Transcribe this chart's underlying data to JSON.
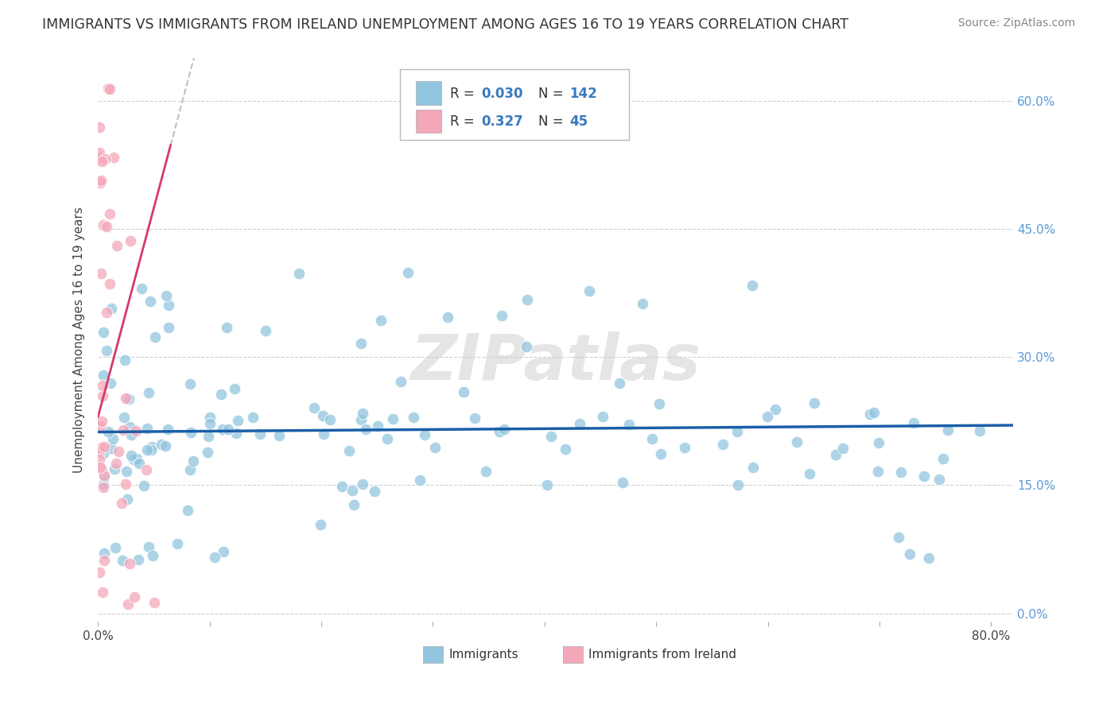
{
  "title": "IMMIGRANTS VS IMMIGRANTS FROM IRELAND UNEMPLOYMENT AMONG AGES 16 TO 19 YEARS CORRELATION CHART",
  "source": "Source: ZipAtlas.com",
  "ylabel": "Unemployment Among Ages 16 to 19 years",
  "xlim": [
    0.0,
    0.82
  ],
  "ylim": [
    -0.01,
    0.65
  ],
  "xtick_vals": [
    0.0,
    0.1,
    0.2,
    0.3,
    0.4,
    0.5,
    0.6,
    0.7,
    0.8
  ],
  "xticklabels": [
    "0.0%",
    "",
    "",
    "",
    "",
    "",
    "",
    "",
    "80.0%"
  ],
  "ytick_vals": [
    0.0,
    0.15,
    0.3,
    0.45,
    0.6
  ],
  "yticklabels_right": [
    "0.0%",
    "15.0%",
    "30.0%",
    "45.0%",
    "60.0%"
  ],
  "legend_r1": "0.030",
  "legend_n1": "142",
  "legend_r2": "0.327",
  "legend_n2": "45",
  "color_blue": "#92c5de",
  "color_pink": "#f4a7b9",
  "color_blue_line": "#1a5fa8",
  "color_pink_line": "#d63a6e",
  "color_dash": "#c0b0b8",
  "background_color": "#ffffff",
  "grid_color": "#d0d0d0",
  "watermark": "ZIPatlas",
  "blue_seed": 77,
  "pink_seed": 33
}
